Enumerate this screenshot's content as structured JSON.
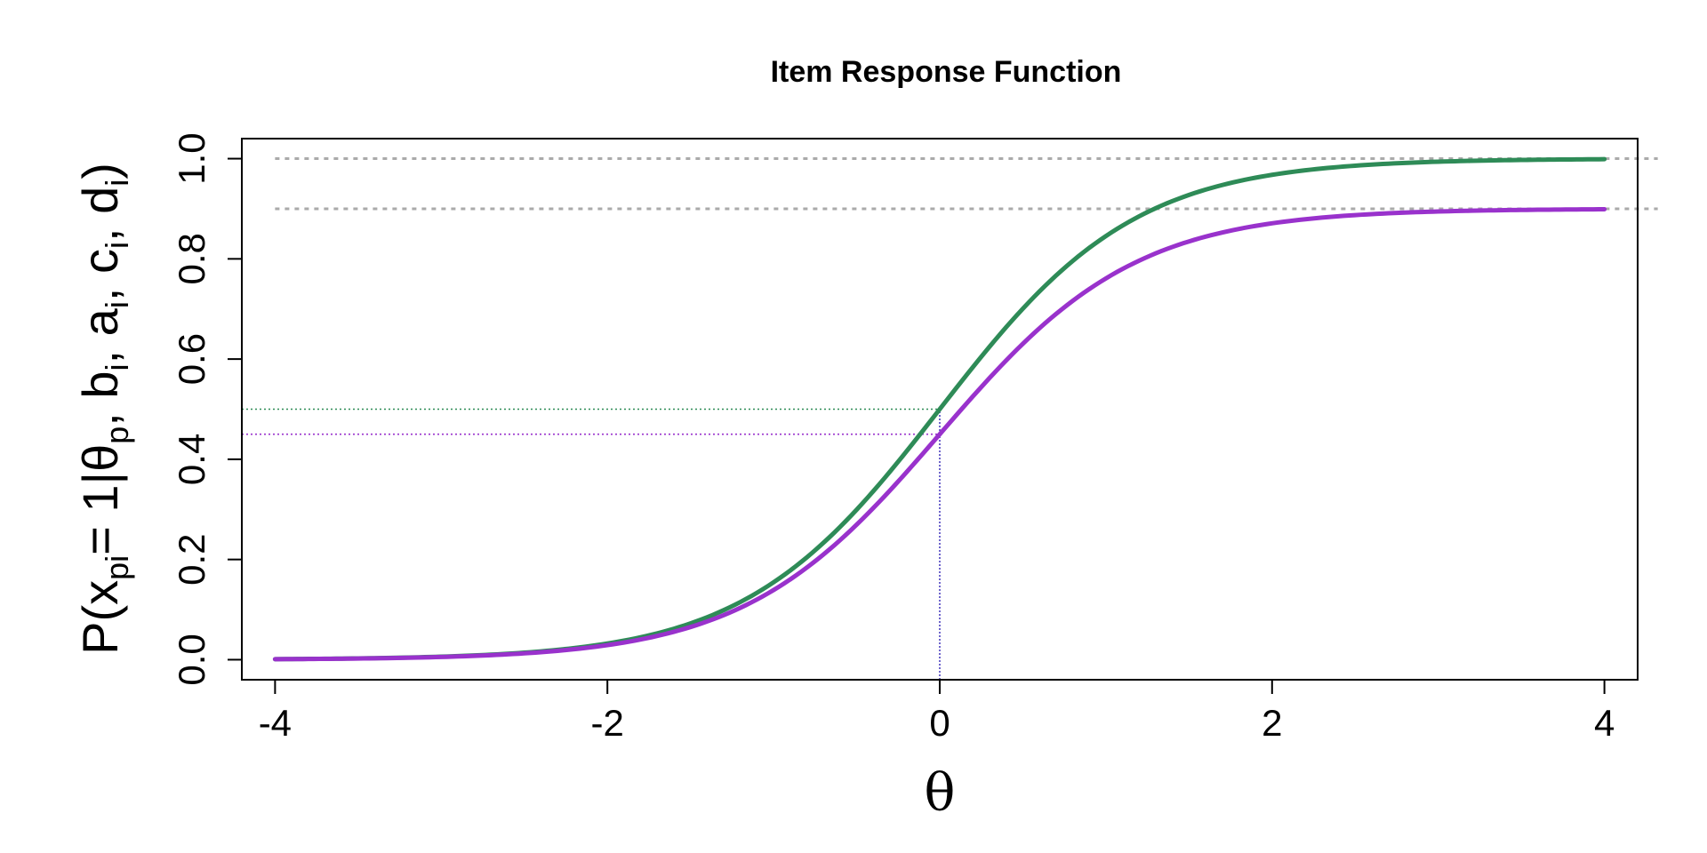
{
  "chart_data": {
    "type": "line",
    "title": "Item Response Function",
    "xlabel": "θ",
    "ylabel": {
      "prefix": "P(x",
      "sub1": "pi",
      "mid1": "= 1|θ",
      "sub2": "p",
      "mid2": ", b",
      "sub3": "i",
      "mid3": ", a",
      "sub4": "i",
      "mid4": ", c",
      "sub5": "i",
      "mid5": ", d",
      "sub6": "i",
      "suffix": ")"
    },
    "xlim": [
      -4.2,
      4.2
    ],
    "ylim": [
      -0.04,
      1.04
    ],
    "xticks": [
      -4,
      -2,
      0,
      2,
      4
    ],
    "xtick_labels": [
      "-4",
      "-2",
      "0",
      "2",
      "4"
    ],
    "yticks": [
      0.0,
      0.2,
      0.4,
      0.6,
      0.8,
      1.0
    ],
    "ytick_labels": [
      "0.0",
      "0.2",
      "0.4",
      "0.6",
      "0.8",
      "1.0"
    ],
    "series": [
      {
        "model": "4PL",
        "a": 1.7,
        "b": 0,
        "c": 0,
        "d": 1.0,
        "color": "#2e8b57"
      },
      {
        "model": "4PL",
        "a": 1.7,
        "b": 0,
        "c": 0,
        "d": 0.9,
        "color": "#9932cc"
      }
    ],
    "reference_lines": {
      "horizontal_upper": [
        1.0,
        0.9
      ],
      "horizontal_upper_color": "#aaaaaa",
      "theta_marker": 0,
      "theta_marker_color": "#4b3fbf",
      "probability_markers": [
        {
          "y": 0.5,
          "color": "#2e8b57"
        },
        {
          "y": 0.45,
          "color": "#9932cc"
        }
      ]
    }
  }
}
